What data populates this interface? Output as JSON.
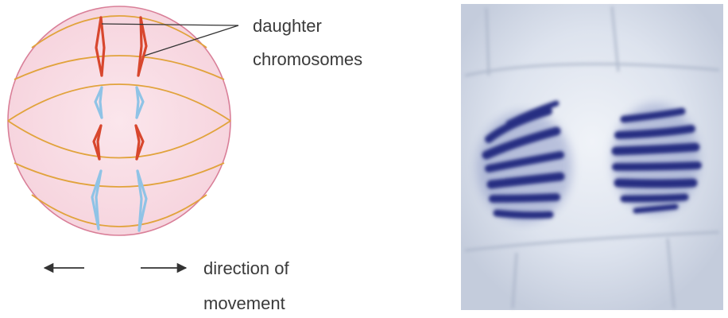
{
  "labels": {
    "daughter_line1": "daughter",
    "daughter_line2": "chromosomes",
    "direction_line1": "direction of",
    "direction_line2": "movement"
  },
  "colors": {
    "cell_fill": "#f9dde5",
    "cell_border": "#d97f98",
    "spindle": "#e1a33c",
    "chromosome_red": "#d8472e",
    "chromosome_blue": "#8fc3e6",
    "photo_background": "#dde4ef",
    "photo_chromosomes": "#2a2f86",
    "arrow": "#333333"
  },
  "icons": {
    "left_arrow": "arrow-left-icon",
    "right_arrow": "arrow-right-icon"
  }
}
